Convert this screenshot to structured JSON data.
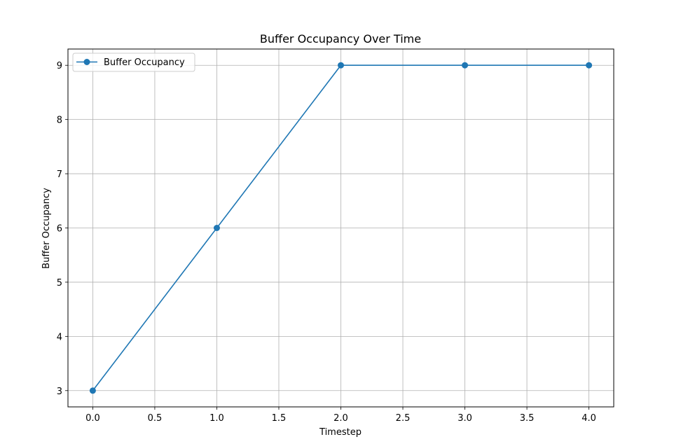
{
  "chart_data": {
    "type": "line",
    "title": "Buffer Occupancy Over Time",
    "xlabel": "Timestep",
    "ylabel": "Buffer Occupancy",
    "x": [
      0,
      1,
      2,
      3,
      4
    ],
    "series": [
      {
        "name": "Buffer Occupancy",
        "values": [
          3,
          6,
          9,
          9,
          9
        ],
        "color": "#1f77b4",
        "marker": "circle"
      }
    ],
    "xlim": [
      -0.2,
      4.2
    ],
    "ylim": [
      2.7,
      9.3
    ],
    "xticks": [
      "0.0",
      "0.5",
      "1.0",
      "1.5",
      "2.0",
      "2.5",
      "3.0",
      "3.5",
      "4.0"
    ],
    "yticks": [
      "3",
      "4",
      "5",
      "6",
      "7",
      "8",
      "9"
    ],
    "grid": true,
    "legend_position": "top-left"
  }
}
